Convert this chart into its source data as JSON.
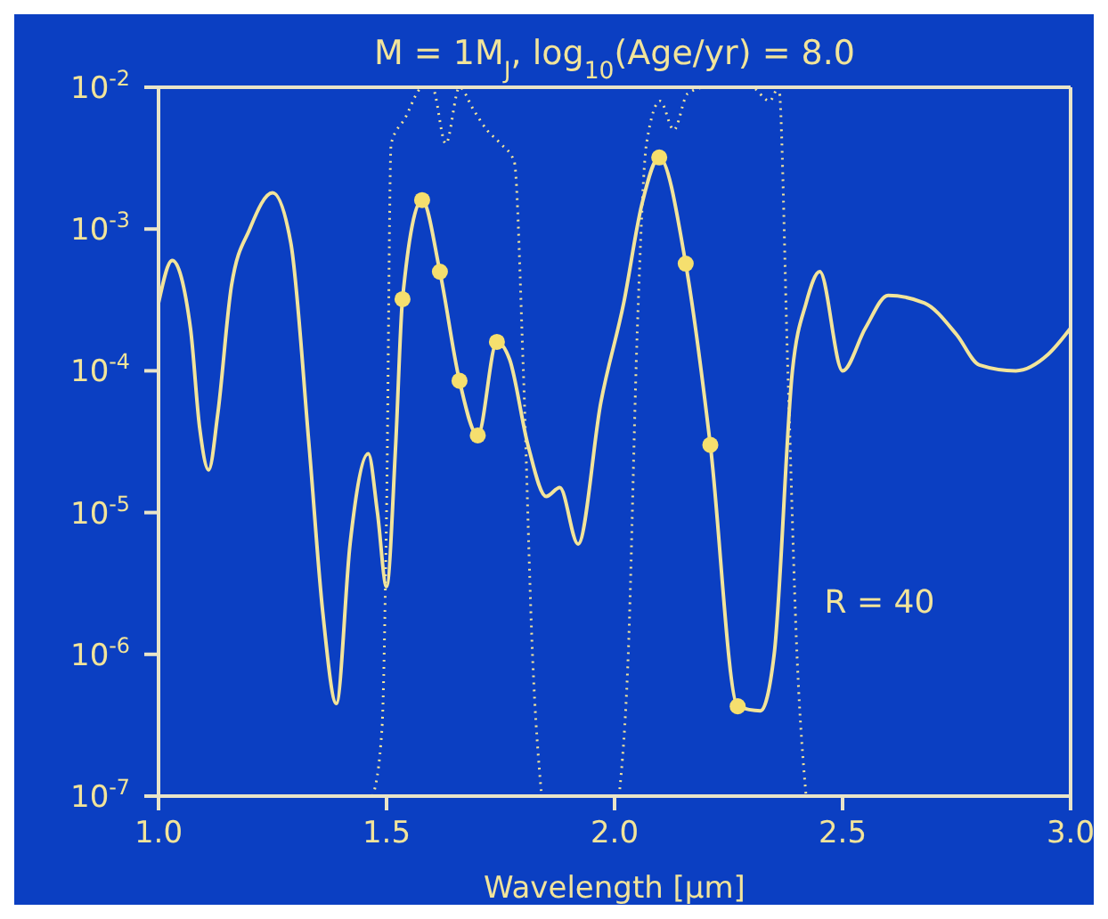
{
  "chart_data": {
    "type": "line",
    "title": "M = 1M$_{J}$, log$_{10}$(Age/yr) = 8.0",
    "xlabel": "Wavelength [µm]",
    "log": "y",
    "xlim": [
      1,
      3
    ],
    "ylim": [
      1e-07,
      0.01
    ],
    "xticks": [
      {
        "value": 1,
        "label": "1.0"
      },
      {
        "value": 1.5,
        "label": "1.5"
      },
      {
        "value": 2,
        "label": "2.0"
      },
      {
        "value": 2.5,
        "label": "2.5"
      },
      {
        "value": 3,
        "label": "3.0"
      }
    ],
    "yticks": [
      {
        "value": 1e-07,
        "label": "10$^{-7}$"
      },
      {
        "value": 1e-06,
        "label": "10$^{-6}$"
      },
      {
        "value": 1e-05,
        "label": "10$^{-5}$"
      },
      {
        "value": 0.0001,
        "label": "10$^{-4}$"
      },
      {
        "value": 0.001,
        "label": "10$^{-3}$"
      },
      {
        "value": 0.01,
        "label": "10$^{-2}$"
      }
    ],
    "grid": false,
    "legend": false,
    "annotations": [
      "R = 40"
    ],
    "series": [
      {
        "type": "line",
        "color": "#f2e49a",
        "line_style": "dotted",
        "marker": "none",
        "x": [
          1.47,
          1.49,
          1.5,
          1.51,
          1.54,
          1.58,
          1.6,
          1.63,
          1.66,
          1.69,
          1.72,
          1.75,
          1.78,
          1.8,
          1.82,
          1.84
        ],
        "values": [
          1e-07,
          3e-07,
          1e-05,
          0.004,
          0.006,
          0.01,
          0.01,
          0.004,
          0.01,
          0.007,
          0.005,
          0.004,
          0.003,
          0.0001,
          1e-06,
          1e-07
        ]
      },
      {
        "type": "line",
        "color": "#f2e49a",
        "line_style": "dotted",
        "marker": "none",
        "x": [
          2.01,
          2.03,
          2.05,
          2.07,
          2.1,
          2.13,
          2.16,
          2.2,
          2.25,
          2.3,
          2.34,
          2.36,
          2.38,
          2.4,
          2.42
        ],
        "values": [
          1e-07,
          1e-06,
          0.0002,
          0.004,
          0.008,
          0.005,
          0.009,
          0.01,
          0.01,
          0.01,
          0.008,
          0.01,
          0.0001,
          1e-06,
          1e-07
        ]
      },
      {
        "type": "line",
        "color": "#f2e49a",
        "line_style": "solid",
        "marker": "none",
        "x": [
          1,
          1.03,
          1.07,
          1.09,
          1.11,
          1.13,
          1.16,
          1.2,
          1.25,
          1.29,
          1.33,
          1.36,
          1.39,
          1.42,
          1.46,
          1.48,
          1.5,
          1.52,
          1.535,
          1.578,
          1.617,
          1.66,
          1.7,
          1.742,
          1.77,
          1.81,
          1.85,
          1.88,
          1.92,
          1.97,
          2.02,
          2.06,
          2.098,
          2.156,
          2.21,
          2.27,
          2.32,
          2.35,
          2.39,
          2.42,
          2.45,
          2.5,
          2.55,
          2.6,
          2.68,
          2.75,
          2.8,
          2.88,
          2.95,
          3
        ],
        "values": [
          0.0003,
          0.0006,
          0.0002,
          4e-05,
          2e-05,
          5e-05,
          0.0004,
          0.001,
          0.0018,
          0.0008,
          3e-05,
          2e-06,
          4.5e-07,
          6e-06,
          2.6e-05,
          1e-05,
          3e-06,
          3e-05,
          0.00032,
          0.0016,
          0.0005,
          8.5e-05,
          3.5e-05,
          0.00016,
          0.00012,
          3e-05,
          1.3e-05,
          1.5e-05,
          6e-06,
          6e-05,
          0.0003,
          0.0015,
          0.0032,
          0.00057,
          3e-05,
          4.3e-07,
          4e-07,
          1e-06,
          0.0001,
          0.0003,
          0.0005,
          0.0001,
          0.0002,
          0.00034,
          0.0003,
          0.00018,
          0.00011,
          0.0001,
          0.00013,
          0.0002
        ]
      },
      {
        "type": "scatter",
        "color": "#f5df6e",
        "marker": "circle",
        "x": [
          1.535,
          1.578,
          1.617,
          1.66,
          1.7,
          1.742,
          2.098,
          2.156,
          2.21,
          2.27
        ],
        "values": [
          0.00032,
          0.0016,
          0.0005,
          8.5e-05,
          3.5e-05,
          0.00016,
          0.0032,
          0.00057,
          3e-05,
          4.3e-07
        ]
      }
    ]
  }
}
